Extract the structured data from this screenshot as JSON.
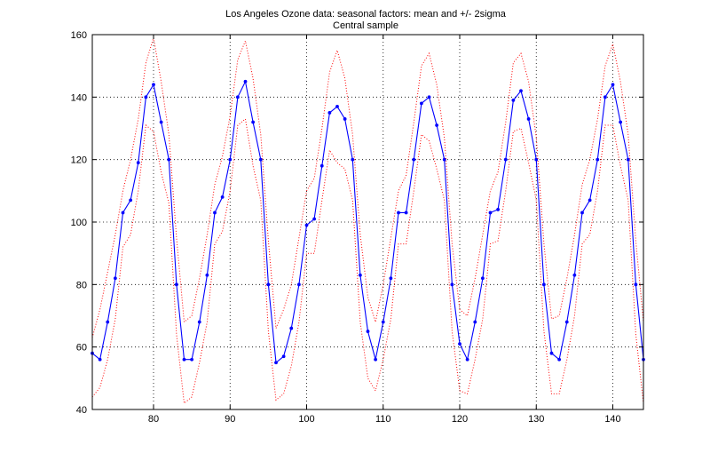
{
  "chart_data": {
    "type": "line",
    "title": "Los Angeles Ozone data: seasonal factors: mean and +/- 2sigma",
    "subtitle": "Central sample",
    "xlabel": "",
    "ylabel": "",
    "xlim": [
      72,
      144
    ],
    "ylim": [
      40,
      160
    ],
    "xticks": [
      80,
      90,
      100,
      110,
      120,
      130,
      140
    ],
    "yticks": [
      40,
      60,
      80,
      100,
      120,
      140,
      160
    ],
    "grid": true,
    "legend": "none",
    "x_start": 72,
    "series": [
      {
        "role": "mean",
        "color": "#0000ff",
        "style": "solid-with-points",
        "values": [
          58,
          56,
          68,
          82,
          103,
          107,
          119,
          140,
          144,
          132,
          120,
          80,
          56,
          56,
          68,
          83,
          103,
          108,
          120,
          140,
          145,
          132,
          120,
          80,
          55,
          57,
          66,
          80,
          99,
          101,
          118,
          135,
          137,
          133,
          120,
          83,
          65,
          56,
          68,
          82,
          103,
          103,
          120,
          138,
          140,
          131,
          120,
          80,
          61,
          56,
          68,
          82,
          103,
          104,
          120,
          139,
          142,
          133,
          120,
          80,
          58,
          56,
          68,
          83,
          103,
          107,
          120,
          140,
          144,
          132,
          120,
          80,
          56
        ]
      },
      {
        "role": "upper (+2 sigma)",
        "color": "#ff0000",
        "style": "dotted",
        "values": [
          63,
          72,
          84,
          96,
          110,
          120,
          133,
          151,
          159,
          145,
          128,
          95,
          68,
          70,
          82,
          96,
          112,
          121,
          134,
          152,
          158,
          146,
          128,
          94,
          66,
          72,
          80,
          95,
          110,
          114,
          130,
          148,
          155,
          146,
          128,
          96,
          76,
          68,
          80,
          95,
          110,
          115,
          132,
          150,
          154,
          144,
          127,
          93,
          72,
          70,
          82,
          96,
          110,
          116,
          132,
          151,
          154,
          145,
          127,
          93,
          69,
          70,
          82,
          96,
          112,
          120,
          133,
          150,
          157,
          145,
          128,
          94,
          68
        ]
      },
      {
        "role": "lower (-2 sigma)",
        "color": "#ff0000",
        "style": "dotted",
        "values": [
          44,
          47,
          56,
          69,
          92,
          96,
          110,
          131,
          129,
          116,
          106,
          64,
          42,
          44,
          55,
          68,
          93,
          97,
          110,
          131,
          133,
          118,
          107,
          65,
          43,
          45,
          54,
          68,
          90,
          90,
          107,
          123,
          119,
          117,
          107,
          68,
          50,
          46,
          56,
          69,
          93,
          93,
          110,
          128,
          126,
          117,
          107,
          65,
          46,
          45,
          56,
          69,
          93,
          94,
          110,
          129,
          130,
          119,
          107,
          65,
          45,
          45,
          56,
          70,
          93,
          96,
          110,
          131,
          131,
          118,
          107,
          64,
          42
        ]
      }
    ]
  }
}
